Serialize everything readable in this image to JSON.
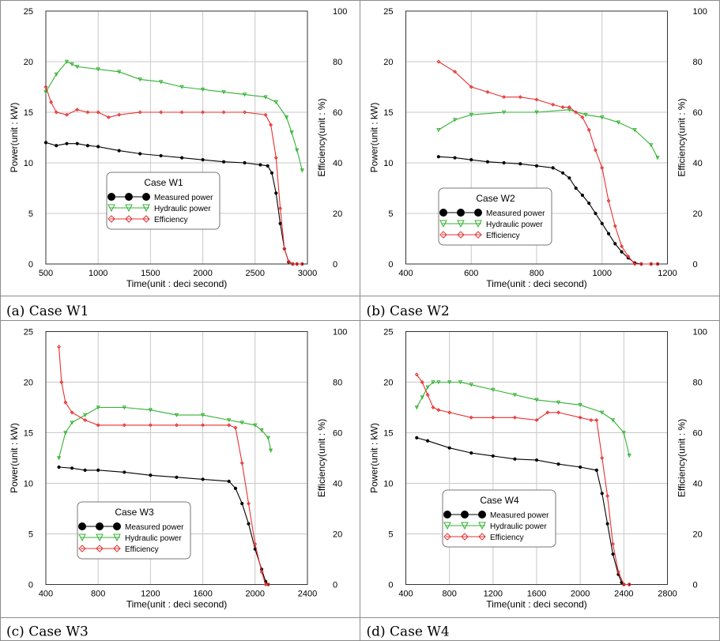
{
  "colors": {
    "measured": "#000000",
    "hydraulic": "#33b233",
    "efficiency": "#e83030",
    "grid": "#c8c8c8",
    "border": "#555555"
  },
  "chart_data": [
    {
      "type": "line",
      "caption": "(a) Case W1",
      "legend_title": "Case W1",
      "xlabel": "Time(unit : deci second)",
      "ylabel": "Power(unit : kW)",
      "y2label": "Efficiency(unit : %)",
      "xlim": [
        500,
        3000
      ],
      "xticks": [
        500,
        1000,
        1500,
        2000,
        2500,
        3000
      ],
      "ylim": [
        0,
        25
      ],
      "yticks": [
        0,
        5,
        10,
        15,
        20,
        25
      ],
      "y2lim": [
        0,
        100
      ],
      "y2ticks": [
        0,
        20,
        40,
        60,
        80,
        100
      ],
      "grid": true,
      "series": [
        {
          "name": "Measured power",
          "axis": "y1",
          "marker": "circle",
          "x": [
            500,
            600,
            700,
            800,
            900,
            1000,
            1200,
            1400,
            1600,
            1800,
            2000,
            2200,
            2400,
            2550,
            2620,
            2660,
            2700,
            2740,
            2780,
            2820,
            2860,
            2900,
            2950
          ],
          "y": [
            12.0,
            11.7,
            11.9,
            11.9,
            11.7,
            11.6,
            11.2,
            10.9,
            10.7,
            10.5,
            10.3,
            10.1,
            10.0,
            9.8,
            9.7,
            9.0,
            7.0,
            4.0,
            1.5,
            0.2,
            0.0,
            0.0,
            0.0
          ]
        },
        {
          "name": "Hydraulic power",
          "axis": "y2",
          "marker": "triangle",
          "x": [
            500,
            600,
            700,
            750,
            800,
            1000,
            1200,
            1400,
            1600,
            1800,
            2000,
            2200,
            2400,
            2600,
            2700,
            2800,
            2850,
            2900,
            2950
          ],
          "y": [
            68,
            75,
            80,
            79,
            78,
            77,
            76,
            73,
            72,
            70,
            69,
            68,
            67,
            66,
            64,
            58,
            52,
            45,
            37
          ]
        },
        {
          "name": "Efficiency",
          "axis": "y2",
          "marker": "diamond",
          "x": [
            500,
            550,
            600,
            700,
            800,
            900,
            1000,
            1100,
            1200,
            1400,
            1600,
            1800,
            2000,
            2200,
            2400,
            2600,
            2650,
            2700,
            2740,
            2780,
            2820,
            2860,
            2900,
            2950
          ],
          "y": [
            70,
            64,
            60,
            59,
            61,
            60,
            60,
            58,
            59,
            60,
            60,
            60,
            60,
            60,
            60,
            59,
            55,
            42,
            22,
            6,
            1,
            0,
            0,
            0
          ]
        }
      ]
    },
    {
      "type": "line",
      "caption": "(b) Case W2",
      "legend_title": "Case W2",
      "xlabel": "Time(unit : deci second)",
      "ylabel": "Power(unit : kW)",
      "y2label": "Efficiency(unit : %)",
      "xlim": [
        400,
        1200
      ],
      "xticks": [
        400,
        600,
        800,
        1000,
        1200
      ],
      "ylim": [
        0,
        25
      ],
      "yticks": [
        0,
        5,
        10,
        15,
        20,
        25
      ],
      "y2lim": [
        0,
        100
      ],
      "y2ticks": [
        0,
        20,
        40,
        60,
        80,
        100
      ],
      "grid": true,
      "series": [
        {
          "name": "Measured power",
          "axis": "y1",
          "marker": "circle",
          "x": [
            500,
            550,
            600,
            650,
            700,
            750,
            800,
            850,
            880,
            900,
            920,
            940,
            960,
            980,
            1000,
            1020,
            1040,
            1060,
            1080,
            1100,
            1120,
            1150,
            1170
          ],
          "y": [
            10.6,
            10.5,
            10.3,
            10.1,
            10.0,
            9.9,
            9.7,
            9.5,
            9.0,
            8.5,
            7.5,
            6.8,
            6.0,
            5.0,
            4.0,
            3.0,
            2.0,
            1.2,
            0.6,
            0.1,
            0.0,
            0.0,
            0.0
          ]
        },
        {
          "name": "Hydraulic power",
          "axis": "y2",
          "marker": "triangle",
          "x": [
            500,
            550,
            600,
            700,
            800,
            900,
            950,
            1000,
            1050,
            1100,
            1150,
            1170
          ],
          "y": [
            53,
            57,
            59,
            60,
            60,
            61,
            59,
            58,
            56,
            53,
            47,
            42
          ]
        },
        {
          "name": "Efficiency",
          "axis": "y2",
          "marker": "diamond",
          "x": [
            500,
            550,
            600,
            650,
            700,
            750,
            800,
            850,
            880,
            900,
            920,
            940,
            960,
            980,
            1000,
            1020,
            1040,
            1060,
            1080,
            1100,
            1120,
            1150,
            1170
          ],
          "y": [
            80,
            76,
            70,
            68,
            66,
            66,
            65,
            63,
            62,
            62,
            60,
            58,
            53,
            45,
            38,
            25,
            15,
            7,
            3,
            0,
            0,
            0,
            0
          ]
        }
      ]
    },
    {
      "type": "line",
      "caption": "(c) Case W3",
      "legend_title": "Case W3",
      "xlabel": "Time(unit : deci second)",
      "ylabel": "Power(unit : kW)",
      "y2label": "Efficiency(unit : %)",
      "xlim": [
        400,
        2400
      ],
      "xticks": [
        400,
        800,
        1200,
        1600,
        2000,
        2400
      ],
      "ylim": [
        0,
        25
      ],
      "yticks": [
        0,
        5,
        10,
        15,
        20,
        25
      ],
      "y2lim": [
        0,
        100
      ],
      "y2ticks": [
        0,
        20,
        40,
        60,
        80,
        100
      ],
      "grid": true,
      "series": [
        {
          "name": "Measured power",
          "axis": "y1",
          "marker": "circle",
          "x": [
            500,
            600,
            700,
            800,
            1000,
            1200,
            1400,
            1600,
            1800,
            1850,
            1900,
            1950,
            2000,
            2050,
            2080,
            2100
          ],
          "y": [
            11.6,
            11.5,
            11.3,
            11.3,
            11.1,
            10.8,
            10.6,
            10.4,
            10.2,
            9.5,
            8.0,
            6.0,
            3.5,
            1.5,
            0.3,
            0.0
          ]
        },
        {
          "name": "Hydraulic power",
          "axis": "y2",
          "marker": "triangle",
          "x": [
            500,
            550,
            600,
            700,
            800,
            1000,
            1200,
            1400,
            1600,
            1800,
            1900,
            2000,
            2050,
            2100,
            2120
          ],
          "y": [
            50,
            60,
            64,
            67,
            70,
            70,
            69,
            67,
            67,
            65,
            64,
            63,
            61,
            58,
            53
          ]
        },
        {
          "name": "Efficiency",
          "axis": "y2",
          "marker": "diamond",
          "x": [
            500,
            520,
            550,
            600,
            700,
            800,
            1000,
            1200,
            1400,
            1600,
            1800,
            1850,
            1900,
            1950,
            2000,
            2050,
            2080,
            2100
          ],
          "y": [
            94,
            80,
            72,
            68,
            65,
            63,
            63,
            63,
            63,
            63,
            63,
            62,
            48,
            32,
            16,
            5,
            0,
            0
          ]
        }
      ]
    },
    {
      "type": "line",
      "caption": "(d) Case W4",
      "legend_title": "Case W4",
      "xlabel": "Time(unit : deci second)",
      "ylabel": "Power(unit : kW)",
      "y2label": "Efficiency(unit : %)",
      "xlim": [
        400,
        2800
      ],
      "xticks": [
        400,
        800,
        1200,
        1600,
        2000,
        2400,
        2800
      ],
      "ylim": [
        0,
        25
      ],
      "yticks": [
        0,
        5,
        10,
        15,
        20,
        25
      ],
      "y2lim": [
        0,
        100
      ],
      "y2ticks": [
        0,
        20,
        40,
        60,
        80,
        100
      ],
      "grid": true,
      "series": [
        {
          "name": "Measured power",
          "axis": "y1",
          "marker": "circle",
          "x": [
            500,
            600,
            800,
            1000,
            1200,
            1400,
            1600,
            1800,
            2000,
            2150,
            2200,
            2250,
            2300,
            2350,
            2380,
            2400,
            2450
          ],
          "y": [
            14.5,
            14.2,
            13.5,
            13.0,
            12.7,
            12.4,
            12.3,
            11.9,
            11.6,
            11.3,
            9.0,
            6.0,
            3.0,
            1.0,
            0.2,
            0.0,
            0.0
          ]
        },
        {
          "name": "Hydraulic power",
          "axis": "y2",
          "marker": "triangle",
          "x": [
            500,
            550,
            600,
            650,
            700,
            800,
            900,
            1000,
            1200,
            1400,
            1600,
            1800,
            2000,
            2200,
            2300,
            2400,
            2450
          ],
          "y": [
            70,
            74,
            78,
            80,
            80,
            80,
            80,
            79,
            77,
            75,
            73,
            72,
            71,
            68,
            65,
            60,
            51
          ]
        },
        {
          "name": "Efficiency",
          "axis": "y2",
          "marker": "diamond",
          "x": [
            500,
            550,
            600,
            650,
            700,
            800,
            1000,
            1200,
            1400,
            1600,
            1700,
            1800,
            2000,
            2100,
            2150,
            2200,
            2250,
            2300,
            2350,
            2400,
            2450
          ],
          "y": [
            83,
            80,
            75,
            70,
            69,
            68,
            66,
            66,
            66,
            65,
            68,
            68,
            66,
            65,
            65,
            50,
            35,
            16,
            5,
            0,
            0
          ]
        }
      ]
    }
  ]
}
